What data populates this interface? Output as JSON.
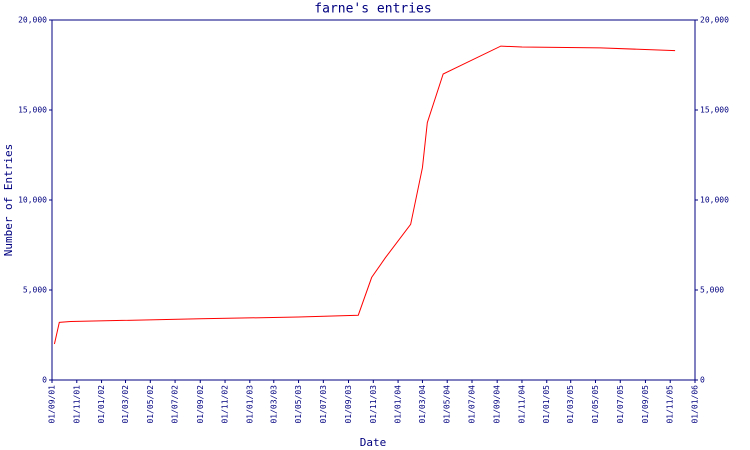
{
  "chart_data": {
    "type": "line",
    "title": "farne's entries",
    "xlabel": "Date",
    "ylabel": "Number of Entries",
    "x": [
      "2001-09-07",
      "2001-09-19",
      "2001-10-17",
      "2002-09-01",
      "2003-05-01",
      "2003-09-25",
      "2003-10-28",
      "2003-12-01",
      "2004-02-01",
      "2004-03-01",
      "2004-03-13",
      "2004-04-21",
      "2004-06-01",
      "2004-09-10",
      "2004-11-01",
      "2005-05-13",
      "2005-11-13"
    ],
    "series": [
      {
        "name": "farne",
        "color": "#ff0000",
        "values": [
          2000,
          3200,
          3250,
          3400,
          3500,
          3600,
          5700,
          6800,
          8650,
          11800,
          14300,
          17000,
          17450,
          18550,
          18500,
          18450,
          18300
        ]
      }
    ],
    "xlim": [
      "2001-09-01",
      "2006-01-01"
    ],
    "xticks": [
      {
        "value": "2001-09-01",
        "label": "01/09/01"
      },
      {
        "value": "2001-11-01",
        "label": "01/11/01"
      },
      {
        "value": "2002-01-01",
        "label": "01/01/02"
      },
      {
        "value": "2002-03-01",
        "label": "01/03/02"
      },
      {
        "value": "2002-05-01",
        "label": "01/05/02"
      },
      {
        "value": "2002-07-01",
        "label": "01/07/02"
      },
      {
        "value": "2002-09-01",
        "label": "01/09/02"
      },
      {
        "value": "2002-11-01",
        "label": "01/11/02"
      },
      {
        "value": "2003-01-01",
        "label": "01/01/03"
      },
      {
        "value": "2003-03-01",
        "label": "01/03/03"
      },
      {
        "value": "2003-05-01",
        "label": "01/05/03"
      },
      {
        "value": "2003-07-01",
        "label": "01/07/03"
      },
      {
        "value": "2003-09-01",
        "label": "01/09/03"
      },
      {
        "value": "2003-11-01",
        "label": "01/11/03"
      },
      {
        "value": "2004-01-01",
        "label": "01/01/04"
      },
      {
        "value": "2004-03-01",
        "label": "01/03/04"
      },
      {
        "value": "2004-05-01",
        "label": "01/05/04"
      },
      {
        "value": "2004-07-01",
        "label": "01/07/04"
      },
      {
        "value": "2004-09-01",
        "label": "01/09/04"
      },
      {
        "value": "2004-11-01",
        "label": "01/11/04"
      },
      {
        "value": "2005-01-01",
        "label": "01/01/05"
      },
      {
        "value": "2005-03-01",
        "label": "01/03/05"
      },
      {
        "value": "2005-05-01",
        "label": "01/05/05"
      },
      {
        "value": "2005-07-01",
        "label": "01/07/05"
      },
      {
        "value": "2005-09-01",
        "label": "01/09/05"
      },
      {
        "value": "2005-11-01",
        "label": "01/11/05"
      },
      {
        "value": "2006-01-01",
        "label": "01/01/06"
      }
    ],
    "ylim": [
      0,
      20000
    ],
    "yticks": [
      0,
      {
        "value": 5000,
        "label": "5,000"
      },
      {
        "value": 10000,
        "label": "10,000"
      },
      {
        "value": 15000,
        "label": "15,000"
      },
      {
        "value": 20000,
        "label": "20,000"
      }
    ]
  }
}
